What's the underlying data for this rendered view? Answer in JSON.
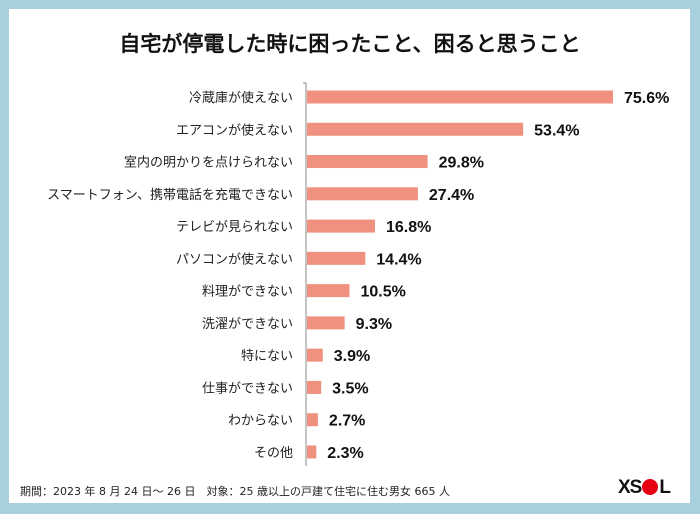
{
  "chart_data": {
    "type": "bar",
    "orientation": "horizontal",
    "title": "自宅が停電した時に困ったこと、困ると思うこと",
    "categories": [
      "冷蔵庫が使えない",
      "エアコンが使えない",
      "室内の明かりを点けられない",
      "スマートフォン、携帯電話を充電できない",
      "テレビが見られない",
      "パソコンが使えない",
      "料理ができない",
      "洗濯ができない",
      "特にない",
      "仕事ができない",
      "わからない",
      "その他"
    ],
    "values": [
      75.6,
      53.4,
      29.8,
      27.4,
      16.8,
      14.4,
      10.5,
      9.3,
      3.9,
      3.5,
      2.7,
      2.3
    ],
    "value_labels": [
      "75.6%",
      "53.4%",
      "29.8%",
      "27.4%",
      "16.8%",
      "14.4%",
      "10.5%",
      "9.3%",
      "3.9%",
      "3.5%",
      "2.7%",
      "2.3%"
    ],
    "unit": "%",
    "grid": false,
    "bar_color": "#f0907f"
  },
  "footer": "期間：2023 年 8 月 24 日～ 26 日　対象：25 歳以上の戸建て住宅に住む男女 665 人",
  "logo": {
    "text_left": "XS",
    "text_right": "L",
    "dot_color": "#e60012"
  },
  "colors": {
    "border": "#a9d1dd",
    "bar": "#f0907f"
  }
}
